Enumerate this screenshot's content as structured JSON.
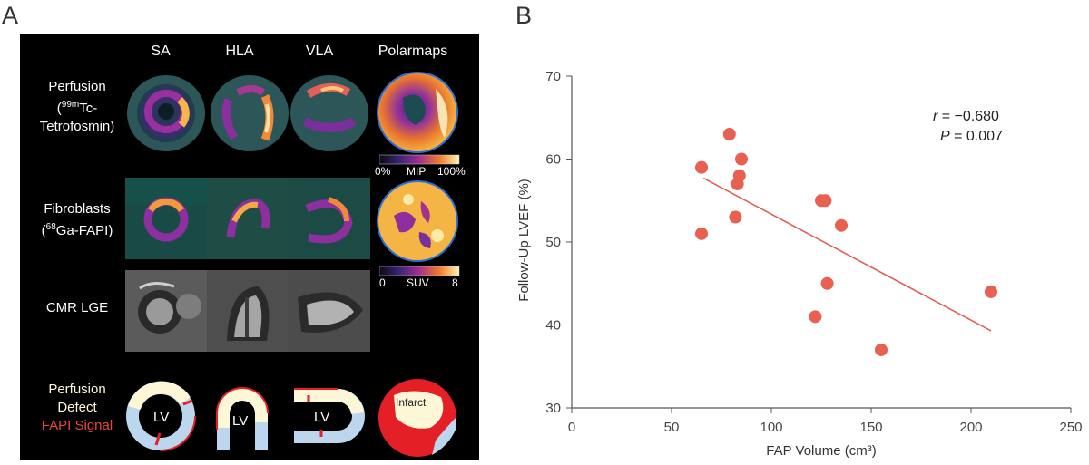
{
  "figure": {
    "panel_a_letter": "A",
    "panel_b_letter": "B"
  },
  "panel_a": {
    "column_headers": [
      "SA",
      "HLA",
      "VLA",
      "Polarmaps"
    ],
    "rows": {
      "perfusion": {
        "line1": "Perfusion",
        "line2_pre": "(",
        "line2_sup": "99m",
        "line2_post": "Tc-",
        "line3": "Tetrofosmin)"
      },
      "fibroblasts": {
        "line1": "Fibroblasts",
        "line2_pre": "(",
        "line2_sup": "68",
        "line2_post": "Ga-FAPI)"
      },
      "cmr": {
        "line1": "CMR LGE"
      },
      "schematic": {
        "line1": "Perfusion",
        "line2": "Defect",
        "line3": "FAPI Signal"
      }
    },
    "colorbar_perfusion": {
      "min": "0%",
      "mid": "MIP",
      "max": "100%"
    },
    "colorbar_fapi": {
      "min": "0",
      "mid": "SUV",
      "max": "8"
    },
    "lv_label": "LV",
    "infarct_label": "Infarct",
    "colors": {
      "fapi_text": "#e8463f",
      "defect_fill": "#fdf7d8",
      "fapi_red": "#e41f26",
      "myocardium_blue": "#bcd6ee"
    }
  },
  "chart_data": {
    "type": "scatter",
    "title": "",
    "xlabel": "FAP Volume (cm³)",
    "ylabel": "Follow-Up LVEF (%)",
    "xlim": [
      0,
      250
    ],
    "ylim": [
      30,
      70
    ],
    "xticks": [
      0,
      50,
      100,
      150,
      200,
      250
    ],
    "yticks": [
      30,
      40,
      50,
      60,
      70
    ],
    "points": [
      {
        "x": 65,
        "y": 59
      },
      {
        "x": 65,
        "y": 51
      },
      {
        "x": 79,
        "y": 63
      },
      {
        "x": 82,
        "y": 53
      },
      {
        "x": 83,
        "y": 57
      },
      {
        "x": 84,
        "y": 58
      },
      {
        "x": 85,
        "y": 60
      },
      {
        "x": 122,
        "y": 41
      },
      {
        "x": 125,
        "y": 55
      },
      {
        "x": 127,
        "y": 55
      },
      {
        "x": 128,
        "y": 45
      },
      {
        "x": 135,
        "y": 52
      },
      {
        "x": 155,
        "y": 37
      },
      {
        "x": 210,
        "y": 44
      }
    ],
    "regression_line": {
      "x": [
        66,
        210
      ],
      "y": [
        57.7,
        39.3
      ]
    },
    "annotation": {
      "r_label": "r",
      "r_value": " = −0.680",
      "p_label": "P",
      "p_value": " = 0.007"
    },
    "point_color": "#e8604f",
    "line_color": "#e06050",
    "grid": false
  }
}
